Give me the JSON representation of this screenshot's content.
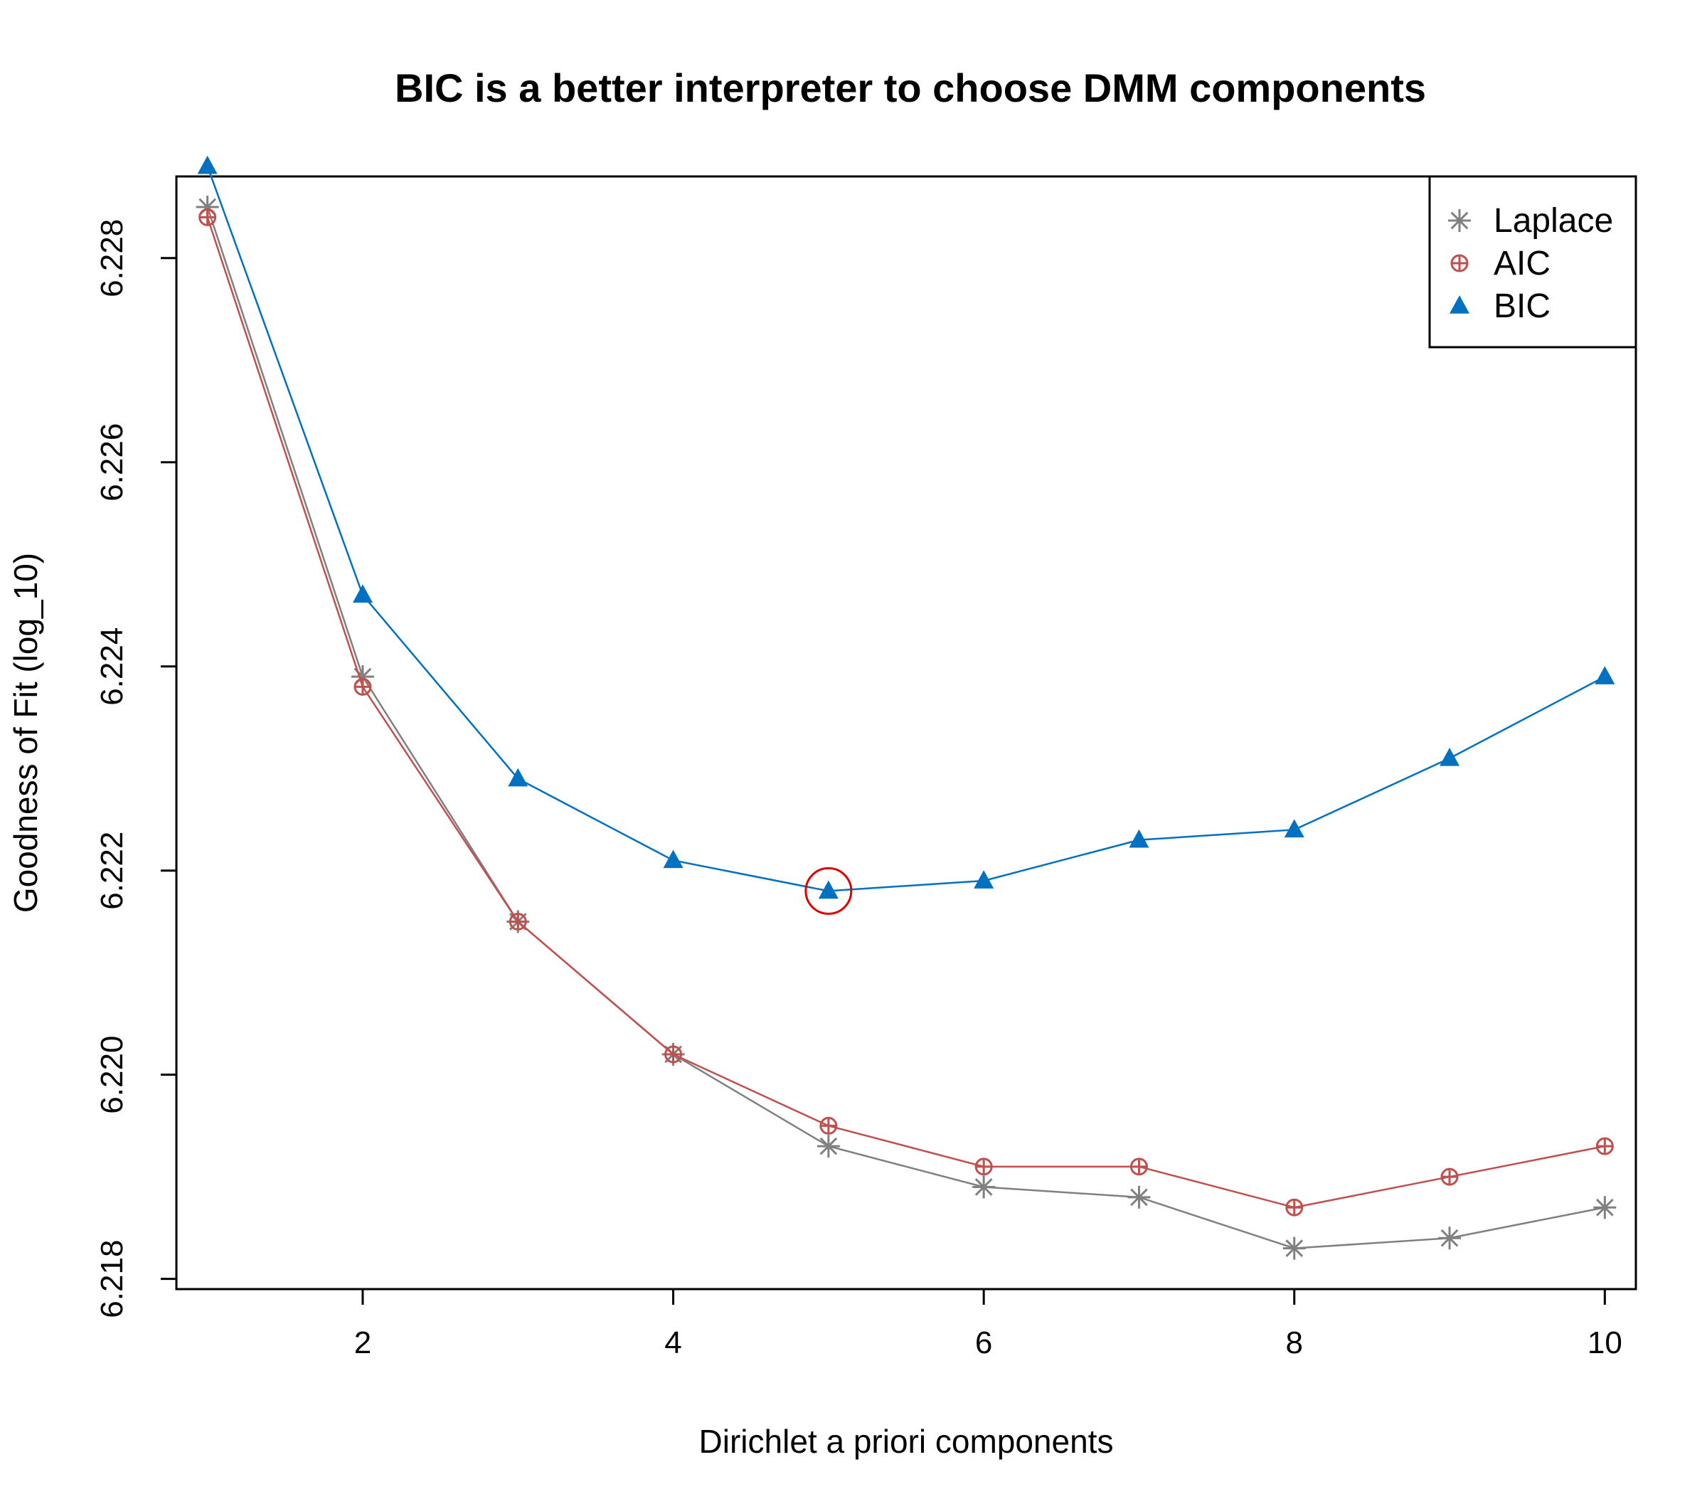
{
  "chart_data": {
    "type": "line",
    "title": "BIC is a better interpreter to choose DMM components",
    "xlabel": "Dirichlet a priori components",
    "ylabel": "Goodness of Fit (log_10)",
    "x": [
      1,
      2,
      3,
      4,
      5,
      6,
      7,
      8,
      9,
      10
    ],
    "xlim": [
      0.8,
      10.2
    ],
    "ylim": [
      6.2179,
      6.2288
    ],
    "xticks": [
      2,
      4,
      6,
      8,
      10
    ],
    "yticks": [
      6.218,
      6.22,
      6.222,
      6.224,
      6.226,
      6.228
    ],
    "xtick_labels": [
      "2",
      "4",
      "6",
      "8",
      "10"
    ],
    "ytick_labels": [
      "6.218",
      "6.220",
      "6.222",
      "6.224",
      "6.226",
      "6.228"
    ],
    "series": [
      {
        "name": "Laplace",
        "color": "#808080",
        "marker": "asterisk",
        "values": [
          6.2285,
          6.2239,
          6.2215,
          6.2202,
          6.2193,
          6.2189,
          6.2188,
          6.2183,
          6.2184,
          6.2187
        ]
      },
      {
        "name": "AIC",
        "color": "#C0504D",
        "marker": "circle-plus",
        "values": [
          6.2284,
          6.2238,
          6.2215,
          6.2202,
          6.2195,
          6.2191,
          6.2191,
          6.2187,
          6.219,
          6.2193
        ]
      },
      {
        "name": "BIC",
        "color": "#0070C0",
        "marker": "triangle",
        "values": [
          6.2289,
          6.2247,
          6.2229,
          6.2221,
          6.2218,
          6.2219,
          6.2223,
          6.2224,
          6.2231,
          6.2239
        ]
      }
    ],
    "highlight": {
      "series": "BIC",
      "x": 5,
      "color": "#E00000"
    },
    "legend_position": "top-right",
    "grid": false
  }
}
